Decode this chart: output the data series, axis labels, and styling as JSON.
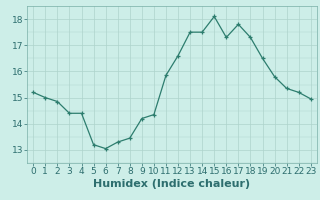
{
  "x": [
    0,
    1,
    2,
    3,
    4,
    5,
    6,
    7,
    8,
    9,
    10,
    11,
    12,
    13,
    14,
    15,
    16,
    17,
    18,
    19,
    20,
    21,
    22,
    23
  ],
  "y": [
    15.2,
    15.0,
    14.85,
    14.4,
    14.4,
    13.2,
    13.05,
    13.3,
    13.45,
    14.2,
    14.35,
    15.85,
    16.6,
    17.5,
    17.5,
    18.1,
    17.3,
    17.8,
    17.3,
    16.5,
    15.8,
    15.35,
    15.2,
    14.95
  ],
  "line_color": "#2d7d6e",
  "marker": "+",
  "bg_color": "#cdeee8",
  "grid_color_major": "#aed4cc",
  "xlabel": "Humidex (Indice chaleur)",
  "ylim": [
    12.5,
    18.5
  ],
  "xlim": [
    -0.5,
    23.5
  ],
  "yticks": [
    13,
    14,
    15,
    16,
    17,
    18
  ],
  "xticks": [
    0,
    1,
    2,
    3,
    4,
    5,
    6,
    7,
    8,
    9,
    10,
    11,
    12,
    13,
    14,
    15,
    16,
    17,
    18,
    19,
    20,
    21,
    22,
    23
  ],
  "tick_fontsize": 6.5,
  "xlabel_fontsize": 8,
  "tick_color": "#2d6e6e"
}
